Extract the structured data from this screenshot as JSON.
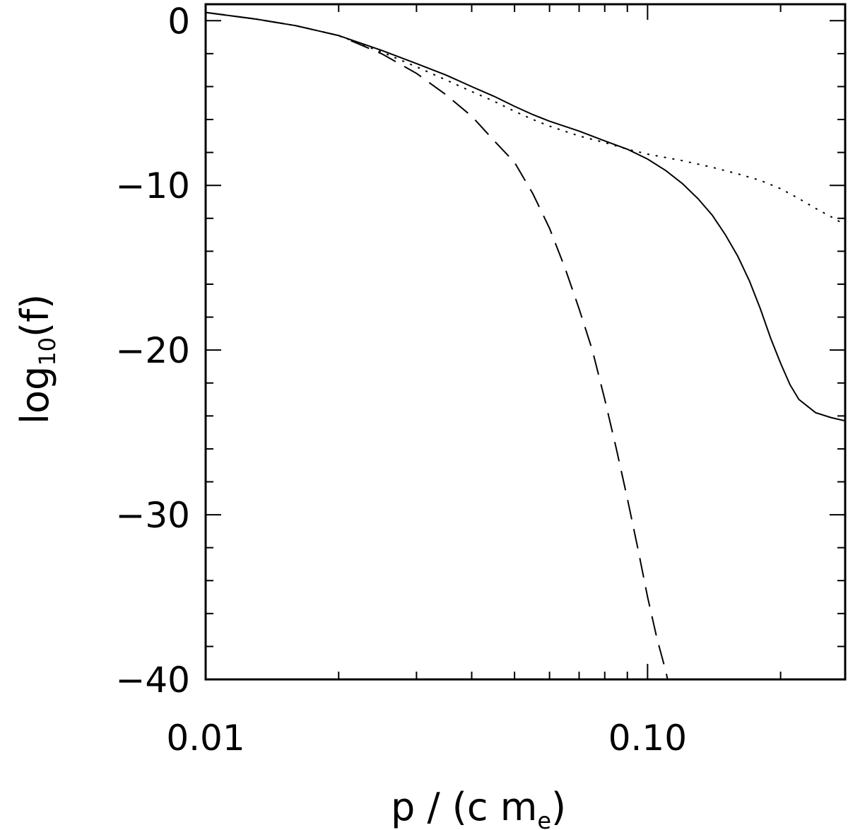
{
  "chart_data": {
    "type": "line",
    "title": "",
    "xlabel": "p / (c m",
    "xlabel_sub": "e",
    "xlabel_close": ")",
    "ylabel": "log",
    "ylabel_sub": "10",
    "ylabel_rest": "(f)",
    "xscale": "log",
    "xlim": [
      0.01,
      0.28
    ],
    "ylim": [
      -40,
      1
    ],
    "x_tick_labels": [
      {
        "value": 0.01,
        "label": "0.01"
      },
      {
        "value": 0.1,
        "label": "0.10"
      }
    ],
    "y_tick_labels": [
      {
        "value": 0,
        "label": "0"
      },
      {
        "value": -10,
        "label": "−10"
      },
      {
        "value": -20,
        "label": "−20"
      },
      {
        "value": -30,
        "label": "−30"
      },
      {
        "value": -40,
        "label": "−40"
      }
    ],
    "grid": false,
    "series": [
      {
        "style": "solid",
        "points": [
          [
            0.01,
            0.5
          ],
          [
            0.013,
            0.1
          ],
          [
            0.016,
            -0.3
          ],
          [
            0.02,
            -0.9
          ],
          [
            0.025,
            -1.8
          ],
          [
            0.03,
            -2.6
          ],
          [
            0.035,
            -3.3
          ],
          [
            0.04,
            -4.0
          ],
          [
            0.045,
            -4.6
          ],
          [
            0.05,
            -5.2
          ],
          [
            0.055,
            -5.7
          ],
          [
            0.06,
            -6.1
          ],
          [
            0.07,
            -6.7
          ],
          [
            0.08,
            -7.3
          ],
          [
            0.09,
            -7.8
          ],
          [
            0.1,
            -8.4
          ],
          [
            0.11,
            -9.1
          ],
          [
            0.12,
            -9.9
          ],
          [
            0.13,
            -10.8
          ],
          [
            0.14,
            -11.8
          ],
          [
            0.15,
            -13.0
          ],
          [
            0.16,
            -14.3
          ],
          [
            0.17,
            -15.8
          ],
          [
            0.18,
            -17.5
          ],
          [
            0.19,
            -19.3
          ],
          [
            0.2,
            -20.8
          ],
          [
            0.21,
            -22.1
          ],
          [
            0.22,
            -23.0
          ],
          [
            0.24,
            -23.8
          ],
          [
            0.26,
            -24.1
          ],
          [
            0.28,
            -24.3
          ]
        ]
      },
      {
        "style": "dotted",
        "points": [
          [
            0.01,
            0.5
          ],
          [
            0.013,
            0.1
          ],
          [
            0.016,
            -0.3
          ],
          [
            0.02,
            -0.9
          ],
          [
            0.025,
            -1.9
          ],
          [
            0.03,
            -2.8
          ],
          [
            0.035,
            -3.6
          ],
          [
            0.04,
            -4.3
          ],
          [
            0.045,
            -4.9
          ],
          [
            0.05,
            -5.5
          ],
          [
            0.055,
            -6.0
          ],
          [
            0.06,
            -6.4
          ],
          [
            0.07,
            -7.0
          ],
          [
            0.08,
            -7.4
          ],
          [
            0.09,
            -7.8
          ],
          [
            0.1,
            -8.1
          ],
          [
            0.12,
            -8.5
          ],
          [
            0.14,
            -8.9
          ],
          [
            0.16,
            -9.3
          ],
          [
            0.18,
            -9.7
          ],
          [
            0.2,
            -10.2
          ],
          [
            0.22,
            -10.8
          ],
          [
            0.24,
            -11.4
          ],
          [
            0.26,
            -11.9
          ],
          [
            0.28,
            -12.4
          ]
        ]
      },
      {
        "style": "dashed",
        "points": [
          [
            0.01,
            0.5
          ],
          [
            0.013,
            0.1
          ],
          [
            0.016,
            -0.3
          ],
          [
            0.02,
            -0.9
          ],
          [
            0.025,
            -2.0
          ],
          [
            0.03,
            -3.2
          ],
          [
            0.035,
            -4.5
          ],
          [
            0.04,
            -5.8
          ],
          [
            0.045,
            -7.3
          ],
          [
            0.05,
            -8.6
          ],
          [
            0.055,
            -10.5
          ],
          [
            0.06,
            -12.6
          ],
          [
            0.065,
            -15.0
          ],
          [
            0.07,
            -17.5
          ],
          [
            0.075,
            -20.0
          ],
          [
            0.08,
            -23.0
          ],
          [
            0.085,
            -26.0
          ],
          [
            0.09,
            -29.0
          ],
          [
            0.095,
            -32.0
          ],
          [
            0.1,
            -35.0
          ],
          [
            0.105,
            -37.5
          ],
          [
            0.11,
            -39.5
          ],
          [
            0.113,
            -41.0
          ]
        ]
      }
    ]
  }
}
